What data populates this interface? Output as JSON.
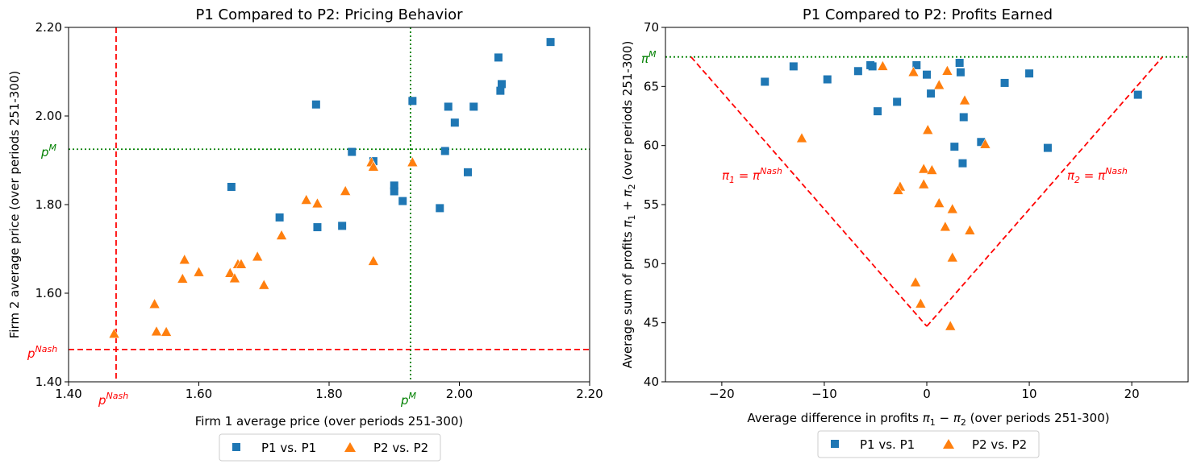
{
  "colors": {
    "p1": "#1f77b4",
    "p2": "#ff7f0e",
    "nash": "#ff0000",
    "monopoly": "#008000"
  },
  "chart_data": [
    {
      "type": "scatter",
      "title": "P1 Compared to P2: Pricing Behavior",
      "xlabel": "Firm 1 average price (over periods 251-300)",
      "ylabel": "Firm 2 average price (over periods 251-300)",
      "xlim": [
        1.4,
        2.2
      ],
      "ylim": [
        1.4,
        2.2
      ],
      "xticks": [
        1.4,
        1.6,
        1.8,
        2.0,
        2.2
      ],
      "xtick_labels": [
        "1.40",
        "1.60",
        "1.80",
        "2.00",
        "2.20"
      ],
      "yticks": [
        1.4,
        1.6,
        1.8,
        2.0,
        2.2
      ],
      "ytick_labels": [
        "1.40",
        "1.60",
        "1.80",
        "2.00",
        "2.20"
      ],
      "reference_lines": [
        {
          "name": "p-nash-vertical",
          "orientation": "vertical",
          "value": 1.473,
          "label": "p^Nash",
          "style": "dashed",
          "color": "#ff0000"
        },
        {
          "name": "p-nash-horizontal",
          "orientation": "horizontal",
          "value": 1.473,
          "label": "p^Nash",
          "style": "dashed",
          "color": "#ff0000"
        },
        {
          "name": "p-monopoly-vertical",
          "orientation": "vertical",
          "value": 1.925,
          "label": "p^M",
          "style": "dotted",
          "color": "#008000"
        },
        {
          "name": "p-monopoly-horizontal",
          "orientation": "horizontal",
          "value": 1.925,
          "label": "p^M",
          "style": "dotted",
          "color": "#008000"
        }
      ],
      "series": [
        {
          "name": "P1 vs. P1",
          "marker": "square",
          "color": "#1f77b4",
          "points": [
            [
              2.14,
              2.167
            ],
            [
              2.06,
              2.132
            ],
            [
              2.065,
              2.072
            ],
            [
              2.063,
              2.057
            ],
            [
              1.928,
              2.034
            ],
            [
              1.983,
              2.021
            ],
            [
              2.022,
              2.021
            ],
            [
              1.78,
              2.026
            ],
            [
              1.993,
              1.985
            ],
            [
              1.978,
              1.921
            ],
            [
              1.835,
              1.919
            ],
            [
              1.868,
              1.898
            ],
            [
              2.013,
              1.873
            ],
            [
              1.65,
              1.84
            ],
            [
              1.9,
              1.843
            ],
            [
              1.9,
              1.83
            ],
            [
              1.913,
              1.808
            ],
            [
              1.97,
              1.792
            ],
            [
              1.724,
              1.771
            ],
            [
              1.782,
              1.749
            ],
            [
              1.82,
              1.752
            ]
          ]
        },
        {
          "name": "P2 vs. P2",
          "marker": "triangle",
          "color": "#ff7f0e",
          "points": [
            [
              1.865,
              1.895
            ],
            [
              1.868,
              1.885
            ],
            [
              1.928,
              1.895
            ],
            [
              1.825,
              1.83
            ],
            [
              1.765,
              1.81
            ],
            [
              1.782,
              1.802
            ],
            [
              1.727,
              1.73
            ],
            [
              1.69,
              1.682
            ],
            [
              1.868,
              1.672
            ],
            [
              1.578,
              1.675
            ],
            [
              1.66,
              1.665
            ],
            [
              1.665,
              1.665
            ],
            [
              1.6,
              1.647
            ],
            [
              1.648,
              1.645
            ],
            [
              1.655,
              1.633
            ],
            [
              1.575,
              1.632
            ],
            [
              1.7,
              1.618
            ],
            [
              1.532,
              1.575
            ],
            [
              1.535,
              1.513
            ],
            [
              1.55,
              1.512
            ],
            [
              1.47,
              1.508
            ]
          ]
        }
      ],
      "legend": {
        "position": "bottom-center",
        "entries": [
          "P1 vs. P1",
          "P2 vs. P2"
        ]
      }
    },
    {
      "type": "scatter",
      "title": "P1 Compared to P2: Profits Earned",
      "xlabel": "Average difference in profits π1 − π2 (over periods 251-300)",
      "ylabel": "Average sum of profits π1 + π2 (over periods 251-300)",
      "xlim": [
        -25.5,
        25.5
      ],
      "ylim": [
        40,
        70
      ],
      "xticks": [
        -20,
        -10,
        0,
        10,
        20
      ],
      "xtick_labels": [
        "−20",
        "−10",
        "0",
        "10",
        "20"
      ],
      "yticks": [
        40,
        45,
        50,
        55,
        60,
        65,
        70
      ],
      "ytick_labels": [
        "40",
        "45",
        "50",
        "55",
        "60",
        "65",
        "70"
      ],
      "reference_lines": [
        {
          "name": "pi-monopoly-horizontal",
          "orientation": "horizontal",
          "value": 67.5,
          "label": "π^M",
          "style": "dotted",
          "color": "#008000"
        },
        {
          "name": "pi1-equals-nash",
          "orientation": "segment",
          "from": [
            -23.0,
            67.5
          ],
          "to": [
            0,
            44.7
          ],
          "label": "π1 = π^Nash",
          "style": "dashed",
          "color": "#ff0000"
        },
        {
          "name": "pi2-equals-nash",
          "orientation": "segment",
          "from": [
            0,
            44.7
          ],
          "to": [
            23.0,
            67.5
          ],
          "label": "π2 = π^Nash",
          "style": "dashed",
          "color": "#ff0000"
        }
      ],
      "series": [
        {
          "name": "P1 vs. P1",
          "marker": "square",
          "color": "#1f77b4",
          "points": [
            [
              -15.8,
              65.4
            ],
            [
              -13.0,
              66.7
            ],
            [
              -9.7,
              65.6
            ],
            [
              -6.7,
              66.3
            ],
            [
              -5.5,
              66.8
            ],
            [
              -5.3,
              66.7
            ],
            [
              -1.0,
              66.8
            ],
            [
              0.0,
              66.0
            ],
            [
              3.2,
              67.0
            ],
            [
              3.3,
              66.2
            ],
            [
              -4.8,
              62.9
            ],
            [
              -2.9,
              63.7
            ],
            [
              0.4,
              64.4
            ],
            [
              3.6,
              62.4
            ],
            [
              7.6,
              65.3
            ],
            [
              10.0,
              66.1
            ],
            [
              20.6,
              64.3
            ],
            [
              2.7,
              59.9
            ],
            [
              5.3,
              60.3
            ],
            [
              3.5,
              58.5
            ],
            [
              11.8,
              59.8
            ]
          ]
        },
        {
          "name": "P2 vs. P2",
          "marker": "triangle",
          "color": "#ff7f0e",
          "points": [
            [
              -4.3,
              66.7
            ],
            [
              -1.3,
              66.2
            ],
            [
              2.0,
              66.3
            ],
            [
              1.2,
              65.1
            ],
            [
              3.7,
              63.8
            ],
            [
              0.1,
              61.3
            ],
            [
              -12.2,
              60.6
            ],
            [
              5.7,
              60.1
            ],
            [
              -0.3,
              58.0
            ],
            [
              0.5,
              57.9
            ],
            [
              -0.3,
              56.7
            ],
            [
              -2.6,
              56.5
            ],
            [
              -2.8,
              56.2
            ],
            [
              1.2,
              55.1
            ],
            [
              2.5,
              54.6
            ],
            [
              1.8,
              53.1
            ],
            [
              4.2,
              52.8
            ],
            [
              2.5,
              50.5
            ],
            [
              -1.1,
              48.4
            ],
            [
              -0.6,
              46.6
            ],
            [
              2.3,
              44.7
            ]
          ]
        }
      ],
      "annotations": [
        {
          "name": "pi1-nash-label",
          "text_main": "π",
          "text_sub": "1",
          "text_eq": " = π",
          "text_sup": "Nash",
          "color": "#ff0000"
        },
        {
          "name": "pi2-nash-label",
          "text_main": "π",
          "text_sub": "2",
          "text_eq": " = π",
          "text_sup": "Nash",
          "color": "#ff0000"
        }
      ],
      "legend": {
        "position": "bottom-center",
        "entries": [
          "P1 vs. P1",
          "P2 vs. P2"
        ]
      }
    }
  ],
  "labels": {
    "p_main": "p",
    "nash_sup": "Nash",
    "m_sup": "M",
    "pi_main": "π"
  },
  "plot1": {
    "title": "P1 Compared to P2: Pricing Behavior",
    "xlabel": "Firm 1 average price (over periods 251-300)",
    "ylabel": "Firm 2 average price (over periods 251-300)",
    "legend_p1": "P1 vs. P1",
    "legend_p2": "P2 vs. P2"
  },
  "plot2": {
    "title": "P1 Compared to P2: Profits Earned",
    "xlabel_pre": "Average difference in profits ",
    "xlabel_post": " (over periods 251-300)",
    "ylabel_pre": "Average sum of profits ",
    "ylabel_post": " (over periods 251-300)",
    "legend_p1": "P1 vs. P1",
    "legend_p2": "P2 vs. P2",
    "pi": "π",
    "sub1": "1",
    "sub2": "2",
    "minus": " − ",
    "plus": " + "
  }
}
